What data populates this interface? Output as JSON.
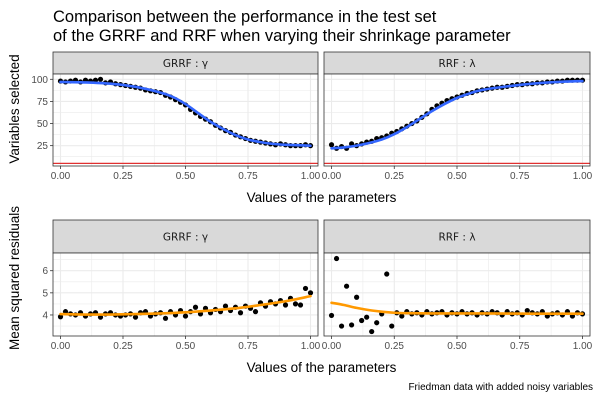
{
  "figure": {
    "title": [
      "Comparison between the performance in the test set",
      "of the GRRF and RRF when varying their shrinkage parameter"
    ],
    "caption": "Friedman data with added noisy variables",
    "colors": {
      "points": "#000000",
      "smooth_top": "#3366ff",
      "smooth_bottom": "#ff9900",
      "hline": "#e03030",
      "strip_fill": "#d9d9d9",
      "panel_border": "#333333",
      "grid": "#ebebeb"
    }
  },
  "chart_data": [
    {
      "type": "scatter",
      "name": "variables-selected",
      "xlabel": "Values of the parameters",
      "ylabel": "Variables selected",
      "xlim": [
        -0.03,
        1.03
      ],
      "ylim": [
        2,
        106
      ],
      "xticks": [
        0,
        0.25,
        0.5,
        0.75,
        1
      ],
      "xticklabels": [
        "0.00",
        "0.25",
        "0.50",
        "0.75",
        "1.00"
      ],
      "yticks": [
        25,
        50,
        75,
        100
      ],
      "yticklabels": [
        "25",
        "50",
        "75",
        "100"
      ],
      "hline": 5,
      "grid": true,
      "facets": [
        {
          "label": "GRRF : γ",
          "points": [
            [
              0.0,
              98
            ],
            [
              0.02,
              97
            ],
            [
              0.04,
              98
            ],
            [
              0.06,
              99
            ],
            [
              0.08,
              97
            ],
            [
              0.1,
              99
            ],
            [
              0.12,
              98
            ],
            [
              0.14,
              99
            ],
            [
              0.16,
              100
            ],
            [
              0.18,
              96
            ],
            [
              0.2,
              97
            ],
            [
              0.22,
              95
            ],
            [
              0.24,
              94
            ],
            [
              0.26,
              93
            ],
            [
              0.28,
              92
            ],
            [
              0.3,
              91
            ],
            [
              0.32,
              90
            ],
            [
              0.34,
              88
            ],
            [
              0.36,
              87
            ],
            [
              0.38,
              86
            ],
            [
              0.4,
              85
            ],
            [
              0.42,
              82
            ],
            [
              0.44,
              80
            ],
            [
              0.46,
              77
            ],
            [
              0.48,
              74
            ],
            [
              0.5,
              71
            ],
            [
              0.52,
              66
            ],
            [
              0.54,
              62
            ],
            [
              0.56,
              58
            ],
            [
              0.58,
              55
            ],
            [
              0.6,
              52
            ],
            [
              0.62,
              48
            ],
            [
              0.64,
              45
            ],
            [
              0.66,
              42
            ],
            [
              0.68,
              40
            ],
            [
              0.7,
              37
            ],
            [
              0.72,
              35
            ],
            [
              0.74,
              33
            ],
            [
              0.76,
              31
            ],
            [
              0.78,
              30
            ],
            [
              0.8,
              29
            ],
            [
              0.82,
              28
            ],
            [
              0.84,
              27
            ],
            [
              0.86,
              26
            ],
            [
              0.88,
              27
            ],
            [
              0.9,
              26
            ],
            [
              0.92,
              25
            ],
            [
              0.94,
              25
            ],
            [
              0.96,
              25
            ],
            [
              0.98,
              26
            ],
            [
              1.0,
              25
            ]
          ],
          "smooth": [
            [
              0.0,
              97
            ],
            [
              0.1,
              96.5
            ],
            [
              0.2,
              95
            ],
            [
              0.3,
              91.5
            ],
            [
              0.4,
              85
            ],
            [
              0.45,
              80
            ],
            [
              0.5,
              72
            ],
            [
              0.55,
              62
            ],
            [
              0.6,
              52
            ],
            [
              0.65,
              44
            ],
            [
              0.7,
              37
            ],
            [
              0.75,
              32
            ],
            [
              0.8,
              29
            ],
            [
              0.85,
              27
            ],
            [
              0.9,
              26
            ],
            [
              1.0,
              25
            ]
          ]
        },
        {
          "label": "RRF : λ",
          "points": [
            [
              0.0,
              26
            ],
            [
              0.02,
              22
            ],
            [
              0.04,
              24
            ],
            [
              0.06,
              22
            ],
            [
              0.08,
              27
            ],
            [
              0.1,
              25
            ],
            [
              0.12,
              27
            ],
            [
              0.14,
              29
            ],
            [
              0.16,
              30
            ],
            [
              0.18,
              33
            ],
            [
              0.2,
              34
            ],
            [
              0.22,
              36
            ],
            [
              0.24,
              39
            ],
            [
              0.26,
              41
            ],
            [
              0.28,
              44
            ],
            [
              0.3,
              47
            ],
            [
              0.32,
              50
            ],
            [
              0.34,
              53
            ],
            [
              0.36,
              57
            ],
            [
              0.38,
              61
            ],
            [
              0.4,
              66
            ],
            [
              0.42,
              70
            ],
            [
              0.44,
              73
            ],
            [
              0.46,
              76
            ],
            [
              0.48,
              78
            ],
            [
              0.5,
              80
            ],
            [
              0.52,
              82
            ],
            [
              0.54,
              84
            ],
            [
              0.56,
              85
            ],
            [
              0.58,
              87
            ],
            [
              0.6,
              88
            ],
            [
              0.62,
              89
            ],
            [
              0.64,
              90
            ],
            [
              0.66,
              91
            ],
            [
              0.68,
              91
            ],
            [
              0.7,
              92
            ],
            [
              0.72,
              93
            ],
            [
              0.74,
              94
            ],
            [
              0.76,
              94
            ],
            [
              0.78,
              95
            ],
            [
              0.8,
              95
            ],
            [
              0.82,
              96
            ],
            [
              0.84,
              96
            ],
            [
              0.86,
              97
            ],
            [
              0.88,
              97
            ],
            [
              0.9,
              98
            ],
            [
              0.92,
              98
            ],
            [
              0.94,
              99
            ],
            [
              0.96,
              99
            ],
            [
              0.98,
              99
            ],
            [
              1.0,
              99
            ]
          ],
          "smooth": [
            [
              0.0,
              22
            ],
            [
              0.05,
              23
            ],
            [
              0.1,
              25
            ],
            [
              0.15,
              28
            ],
            [
              0.2,
              32
            ],
            [
              0.25,
              38
            ],
            [
              0.3,
              46
            ],
            [
              0.35,
              55
            ],
            [
              0.4,
              64
            ],
            [
              0.45,
              72
            ],
            [
              0.5,
              79
            ],
            [
              0.55,
              84
            ],
            [
              0.6,
              88
            ],
            [
              0.7,
              92
            ],
            [
              0.8,
              95
            ],
            [
              0.9,
              97
            ],
            [
              1.0,
              98
            ]
          ]
        }
      ]
    },
    {
      "type": "scatter",
      "name": "mean-squared-residuals",
      "xlabel": "Values of the parameters",
      "ylabel": "Mean squared residuals",
      "xlim": [
        -0.03,
        1.03
      ],
      "ylim": [
        3.05,
        6.8
      ],
      "xticks": [
        0,
        0.25,
        0.5,
        0.75,
        1
      ],
      "xticklabels": [
        "0.00",
        "0.25",
        "0.50",
        "0.75",
        "1.00"
      ],
      "yticks": [
        4,
        5,
        6
      ],
      "yticklabels": [
        "4",
        "5",
        "6"
      ],
      "grid": true,
      "facets": [
        {
          "label": "GRRF : γ",
          "points": [
            [
              0.0,
              3.92
            ],
            [
              0.02,
              4.15
            ],
            [
              0.04,
              4.05
            ],
            [
              0.06,
              4.0
            ],
            [
              0.08,
              4.1
            ],
            [
              0.1,
              3.95
            ],
            [
              0.12,
              4.05
            ],
            [
              0.14,
              4.1
            ],
            [
              0.16,
              3.9
            ],
            [
              0.18,
              4.05
            ],
            [
              0.2,
              4.1
            ],
            [
              0.22,
              4.0
            ],
            [
              0.24,
              3.95
            ],
            [
              0.26,
              4.0
            ],
            [
              0.28,
              4.05
            ],
            [
              0.3,
              3.9
            ],
            [
              0.32,
              4.1
            ],
            [
              0.34,
              4.15
            ],
            [
              0.36,
              3.95
            ],
            [
              0.38,
              4.05
            ],
            [
              0.4,
              4.1
            ],
            [
              0.42,
              3.85
            ],
            [
              0.44,
              4.15
            ],
            [
              0.46,
              4.0
            ],
            [
              0.48,
              4.2
            ],
            [
              0.5,
              3.95
            ],
            [
              0.52,
              4.15
            ],
            [
              0.54,
              4.35
            ],
            [
              0.56,
              4.05
            ],
            [
              0.58,
              4.3
            ],
            [
              0.6,
              4.1
            ],
            [
              0.62,
              4.25
            ],
            [
              0.64,
              4.15
            ],
            [
              0.66,
              4.4
            ],
            [
              0.68,
              4.2
            ],
            [
              0.7,
              4.35
            ],
            [
              0.72,
              4.1
            ],
            [
              0.74,
              4.4
            ],
            [
              0.76,
              4.3
            ],
            [
              0.78,
              4.15
            ],
            [
              0.8,
              4.55
            ],
            [
              0.82,
              4.4
            ],
            [
              0.84,
              4.6
            ],
            [
              0.86,
              4.5
            ],
            [
              0.88,
              4.65
            ],
            [
              0.9,
              4.45
            ],
            [
              0.92,
              4.75
            ],
            [
              0.94,
              4.5
            ],
            [
              0.96,
              4.45
            ],
            [
              0.98,
              5.2
            ],
            [
              1.0,
              5.0
            ]
          ],
          "smooth": [
            [
              0.0,
              4.04
            ],
            [
              0.1,
              4.02
            ],
            [
              0.2,
              4.02
            ],
            [
              0.3,
              4.04
            ],
            [
              0.4,
              4.07
            ],
            [
              0.5,
              4.12
            ],
            [
              0.6,
              4.2
            ],
            [
              0.7,
              4.3
            ],
            [
              0.8,
              4.45
            ],
            [
              0.9,
              4.62
            ],
            [
              1.0,
              4.85
            ]
          ]
        },
        {
          "label": "RRF : λ",
          "points": [
            [
              0.0,
              3.98
            ],
            [
              0.02,
              6.55
            ],
            [
              0.04,
              3.5
            ],
            [
              0.06,
              5.3
            ],
            [
              0.08,
              3.55
            ],
            [
              0.1,
              4.8
            ],
            [
              0.12,
              3.75
            ],
            [
              0.14,
              3.9
            ],
            [
              0.16,
              3.25
            ],
            [
              0.18,
              3.65
            ],
            [
              0.2,
              4.05
            ],
            [
              0.22,
              5.85
            ],
            [
              0.24,
              3.5
            ],
            [
              0.26,
              4.1
            ],
            [
              0.28,
              3.95
            ],
            [
              0.3,
              4.15
            ],
            [
              0.32,
              4.05
            ],
            [
              0.34,
              4.1
            ],
            [
              0.36,
              4.0
            ],
            [
              0.38,
              4.15
            ],
            [
              0.4,
              4.05
            ],
            [
              0.42,
              4.1
            ],
            [
              0.44,
              4.15
            ],
            [
              0.46,
              4.0
            ],
            [
              0.48,
              4.1
            ],
            [
              0.5,
              4.05
            ],
            [
              0.52,
              4.15
            ],
            [
              0.54,
              4.05
            ],
            [
              0.56,
              4.1
            ],
            [
              0.58,
              4.0
            ],
            [
              0.6,
              4.1
            ],
            [
              0.62,
              4.05
            ],
            [
              0.64,
              4.15
            ],
            [
              0.66,
              4.1
            ],
            [
              0.68,
              4.0
            ],
            [
              0.7,
              4.15
            ],
            [
              0.72,
              4.05
            ],
            [
              0.74,
              4.1
            ],
            [
              0.76,
              4.0
            ],
            [
              0.78,
              4.2
            ],
            [
              0.8,
              4.1
            ],
            [
              0.82,
              4.05
            ],
            [
              0.84,
              4.15
            ],
            [
              0.86,
              3.95
            ],
            [
              0.88,
              4.05
            ],
            [
              0.9,
              4.1
            ],
            [
              0.92,
              4.0
            ],
            [
              0.94,
              4.15
            ],
            [
              0.96,
              3.95
            ],
            [
              0.98,
              4.1
            ],
            [
              1.0,
              4.05
            ]
          ],
          "smooth": [
            [
              0.0,
              4.55
            ],
            [
              0.05,
              4.45
            ],
            [
              0.1,
              4.32
            ],
            [
              0.15,
              4.22
            ],
            [
              0.2,
              4.15
            ],
            [
              0.25,
              4.1
            ],
            [
              0.3,
              4.08
            ],
            [
              0.4,
              4.07
            ],
            [
              0.6,
              4.07
            ],
            [
              0.8,
              4.06
            ],
            [
              1.0,
              4.06
            ]
          ]
        }
      ]
    }
  ]
}
